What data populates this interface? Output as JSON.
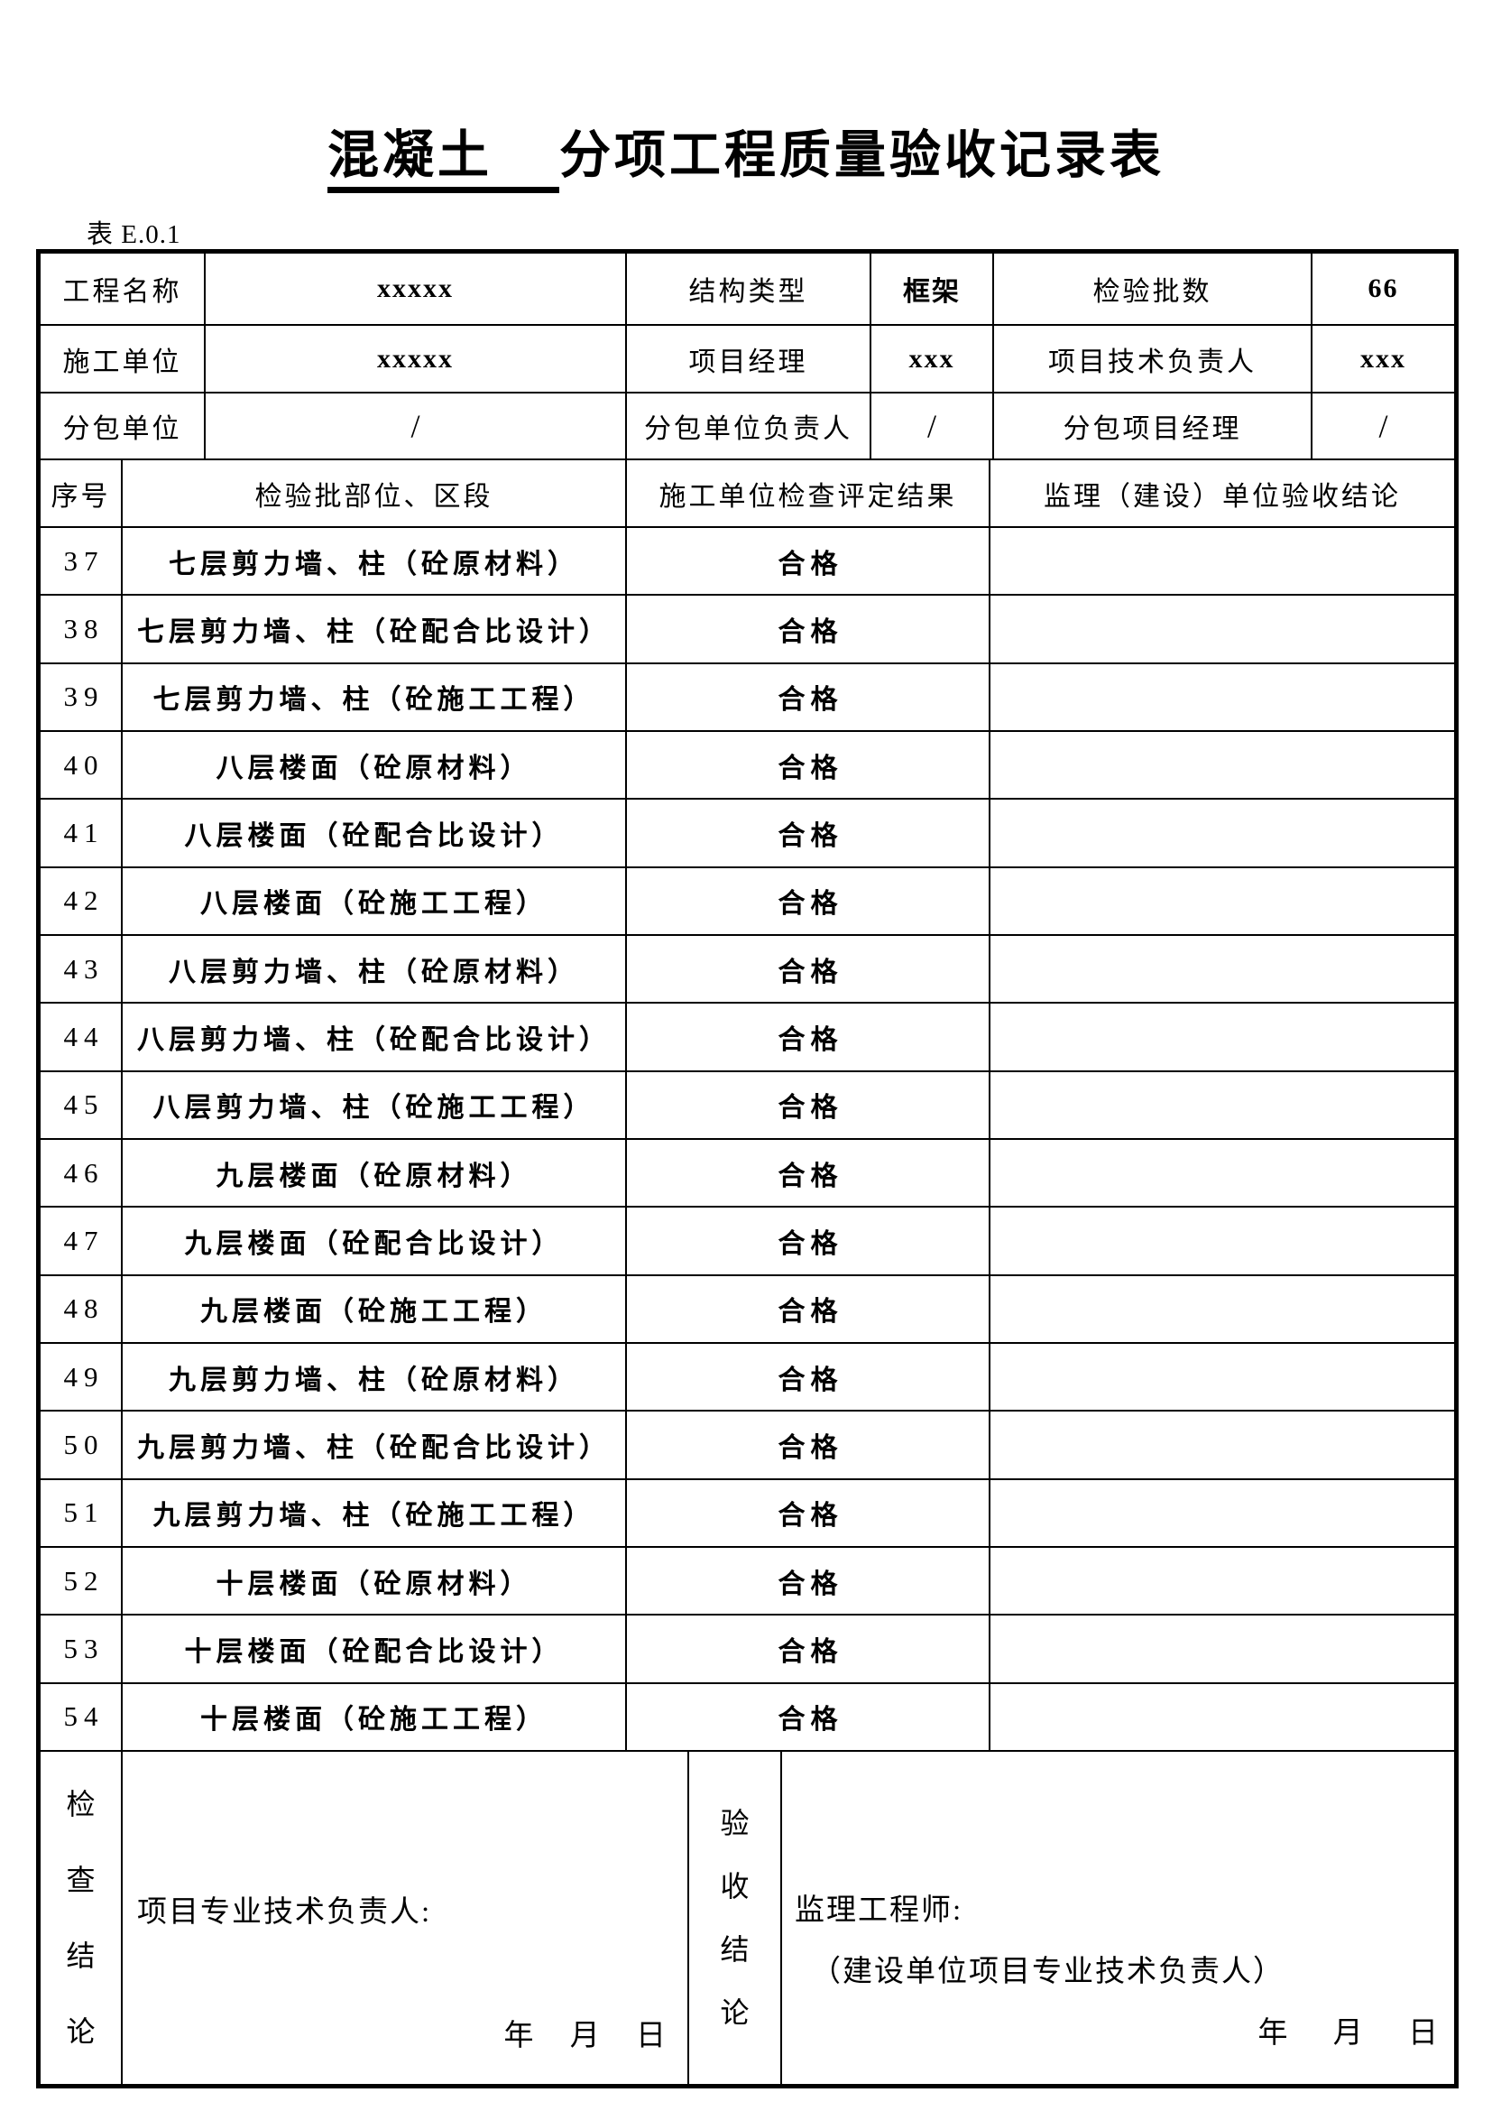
{
  "title": {
    "underlined": "混凝土",
    "rest": "分项工程质量验收记录表"
  },
  "table_label": "表 E.0.1",
  "info": {
    "r0": [
      "工程名称",
      "xxxxx",
      "结构类型",
      "框架",
      "检验批数",
      "66"
    ],
    "r1": [
      "施工单位",
      "xxxxx",
      "项目经理",
      "xxx",
      "项目技术负责人",
      "xxx"
    ],
    "r2": [
      "分包单位",
      "/",
      "分包单位负责人",
      "/",
      "分包项目经理",
      "/"
    ]
  },
  "header": {
    "no": "序号",
    "part": "检验批部位、区段",
    "result": "施工单位检查评定结果",
    "conclusion": "监理（建设）单位验收结论"
  },
  "rows": [
    {
      "no": "37",
      "part": "七层剪力墙、柱（砼原材料）",
      "result": "合格",
      "conclusion": ""
    },
    {
      "no": "38",
      "part": "七层剪力墙、柱（砼配合比设计）",
      "result": "合格",
      "conclusion": ""
    },
    {
      "no": "39",
      "part": "七层剪力墙、柱（砼施工工程）",
      "result": "合格",
      "conclusion": ""
    },
    {
      "no": "40",
      "part": "八层楼面（砼原材料）",
      "result": "合格",
      "conclusion": ""
    },
    {
      "no": "41",
      "part": "八层楼面（砼配合比设计）",
      "result": "合格",
      "conclusion": ""
    },
    {
      "no": "42",
      "part": "八层楼面（砼施工工程）",
      "result": "合格",
      "conclusion": ""
    },
    {
      "no": "43",
      "part": "八层剪力墙、柱（砼原材料）",
      "result": "合格",
      "conclusion": ""
    },
    {
      "no": "44",
      "part": "八层剪力墙、柱（砼配合比设计）",
      "result": "合格",
      "conclusion": ""
    },
    {
      "no": "45",
      "part": "八层剪力墙、柱（砼施工工程）",
      "result": "合格",
      "conclusion": ""
    },
    {
      "no": "46",
      "part": "九层楼面（砼原材料）",
      "result": "合格",
      "conclusion": ""
    },
    {
      "no": "47",
      "part": "九层楼面（砼配合比设计）",
      "result": "合格",
      "conclusion": ""
    },
    {
      "no": "48",
      "part": "九层楼面（砼施工工程）",
      "result": "合格",
      "conclusion": ""
    },
    {
      "no": "49",
      "part": "九层剪力墙、柱（砼原材料）",
      "result": "合格",
      "conclusion": ""
    },
    {
      "no": "50",
      "part": "九层剪力墙、柱（砼配合比设计）",
      "result": "合格",
      "conclusion": ""
    },
    {
      "no": "51",
      "part": "九层剪力墙、柱（砼施工工程）",
      "result": "合格",
      "conclusion": ""
    },
    {
      "no": "52",
      "part": "十层楼面（砼原材料）",
      "result": "合格",
      "conclusion": ""
    },
    {
      "no": "53",
      "part": "十层楼面（砼配合比设计）",
      "result": "合格",
      "conclusion": ""
    },
    {
      "no": "54",
      "part": "十层楼面（砼施工工程）",
      "result": "合格",
      "conclusion": ""
    }
  ],
  "footer": {
    "left_label_chars": [
      "检",
      "查",
      "结",
      "论"
    ],
    "left_title": "项目专业技术负责人:",
    "left_date": "年 月 日",
    "right_label_chars": [
      "验",
      "收",
      "结",
      "论"
    ],
    "right_title": "监理工程师:",
    "right_subtitle": "（建设单位项目专业技术负责人）",
    "right_date": "年 月 日"
  },
  "colors": {
    "ink": "#000000",
    "paper": "#ffffff"
  }
}
